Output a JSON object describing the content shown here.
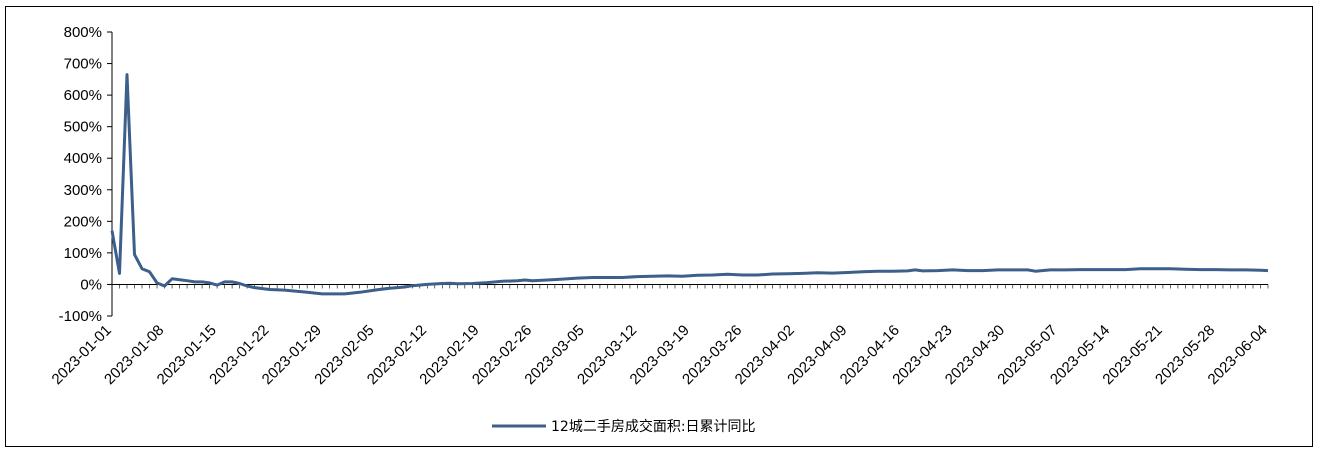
{
  "chart_data": {
    "type": "line",
    "title": "",
    "xlabel": "",
    "ylabel": "",
    "ylim": [
      -100,
      800
    ],
    "yticks": [
      "800%",
      "700%",
      "600%",
      "500%",
      "400%",
      "300%",
      "200%",
      "100%",
      "0%",
      "-100%"
    ],
    "ytick_values": [
      800,
      700,
      600,
      500,
      400,
      300,
      200,
      100,
      0,
      -100
    ],
    "x_range": [
      "2023-01-01",
      "2023-06-04"
    ],
    "xticks": [
      "2023-01-01",
      "2023-01-08",
      "2023-01-15",
      "2023-01-22",
      "2023-01-29",
      "2023-02-05",
      "2023-02-12",
      "2023-02-19",
      "2023-02-26",
      "2023-03-05",
      "2023-03-12",
      "2023-03-19",
      "2023-03-26",
      "2023-04-02",
      "2023-04-09",
      "2023-04-16",
      "2023-04-23",
      "2023-04-30",
      "2023-05-07",
      "2023-05-14",
      "2023-05-21",
      "2023-05-28",
      "2023-06-04"
    ],
    "grid": false,
    "legend": "bottom",
    "color": "#3d5f8b",
    "series": [
      {
        "name": "12城二手房成交面积:日累计同比",
        "points": [
          [
            "2023-01-01",
            170
          ],
          [
            "2023-01-02",
            35
          ],
          [
            "2023-01-03",
            665
          ],
          [
            "2023-01-04",
            95
          ],
          [
            "2023-01-05",
            50
          ],
          [
            "2023-01-06",
            40
          ],
          [
            "2023-01-07",
            5
          ],
          [
            "2023-01-08",
            -5
          ],
          [
            "2023-01-09",
            18
          ],
          [
            "2023-01-10",
            15
          ],
          [
            "2023-01-11",
            12
          ],
          [
            "2023-01-12",
            8
          ],
          [
            "2023-01-13",
            8
          ],
          [
            "2023-01-14",
            5
          ],
          [
            "2023-01-15",
            -2
          ],
          [
            "2023-01-16",
            8
          ],
          [
            "2023-01-17",
            8
          ],
          [
            "2023-01-18",
            3
          ],
          [
            "2023-01-19",
            -5
          ],
          [
            "2023-01-20",
            -10
          ],
          [
            "2023-01-22",
            -16
          ],
          [
            "2023-01-24",
            -18
          ],
          [
            "2023-01-27",
            -25
          ],
          [
            "2023-01-29",
            -30
          ],
          [
            "2023-02-01",
            -30
          ],
          [
            "2023-02-03",
            -25
          ],
          [
            "2023-02-05",
            -18
          ],
          [
            "2023-02-07",
            -12
          ],
          [
            "2023-02-09",
            -8
          ],
          [
            "2023-02-10",
            -4
          ],
          [
            "2023-02-12",
            0
          ],
          [
            "2023-02-14",
            3
          ],
          [
            "2023-02-15",
            4
          ],
          [
            "2023-02-16",
            2
          ],
          [
            "2023-02-18",
            3
          ],
          [
            "2023-02-20",
            6
          ],
          [
            "2023-02-22",
            10
          ],
          [
            "2023-02-24",
            12
          ],
          [
            "2023-02-25",
            14
          ],
          [
            "2023-02-26",
            12
          ],
          [
            "2023-02-28",
            14
          ],
          [
            "2023-03-02",
            17
          ],
          [
            "2023-03-04",
            20
          ],
          [
            "2023-03-06",
            22
          ],
          [
            "2023-03-08",
            22
          ],
          [
            "2023-03-10",
            22
          ],
          [
            "2023-03-12",
            25
          ],
          [
            "2023-03-14",
            26
          ],
          [
            "2023-03-16",
            27
          ],
          [
            "2023-03-18",
            26
          ],
          [
            "2023-03-20",
            29
          ],
          [
            "2023-03-22",
            30
          ],
          [
            "2023-03-24",
            32
          ],
          [
            "2023-03-26",
            30
          ],
          [
            "2023-03-28",
            30
          ],
          [
            "2023-03-30",
            33
          ],
          [
            "2023-04-01",
            34
          ],
          [
            "2023-04-03",
            35
          ],
          [
            "2023-04-05",
            37
          ],
          [
            "2023-04-07",
            36
          ],
          [
            "2023-04-09",
            38
          ],
          [
            "2023-04-11",
            40
          ],
          [
            "2023-04-13",
            42
          ],
          [
            "2023-04-15",
            42
          ],
          [
            "2023-04-17",
            43
          ],
          [
            "2023-04-18",
            46
          ],
          [
            "2023-04-19",
            43
          ],
          [
            "2023-04-21",
            44
          ],
          [
            "2023-04-23",
            46
          ],
          [
            "2023-04-25",
            44
          ],
          [
            "2023-04-27",
            44
          ],
          [
            "2023-04-29",
            46
          ],
          [
            "2023-05-01",
            46
          ],
          [
            "2023-05-03",
            46
          ],
          [
            "2023-05-04",
            42
          ],
          [
            "2023-05-06",
            46
          ],
          [
            "2023-05-08",
            46
          ],
          [
            "2023-05-10",
            47
          ],
          [
            "2023-05-12",
            47
          ],
          [
            "2023-05-14",
            47
          ],
          [
            "2023-05-16",
            47
          ],
          [
            "2023-05-18",
            50
          ],
          [
            "2023-05-20",
            50
          ],
          [
            "2023-05-22",
            50
          ],
          [
            "2023-05-24",
            48
          ],
          [
            "2023-05-26",
            47
          ],
          [
            "2023-05-28",
            47
          ],
          [
            "2023-05-30",
            46
          ],
          [
            "2023-06-01",
            46
          ],
          [
            "2023-06-03",
            45
          ],
          [
            "2023-06-04",
            44
          ]
        ]
      }
    ]
  }
}
